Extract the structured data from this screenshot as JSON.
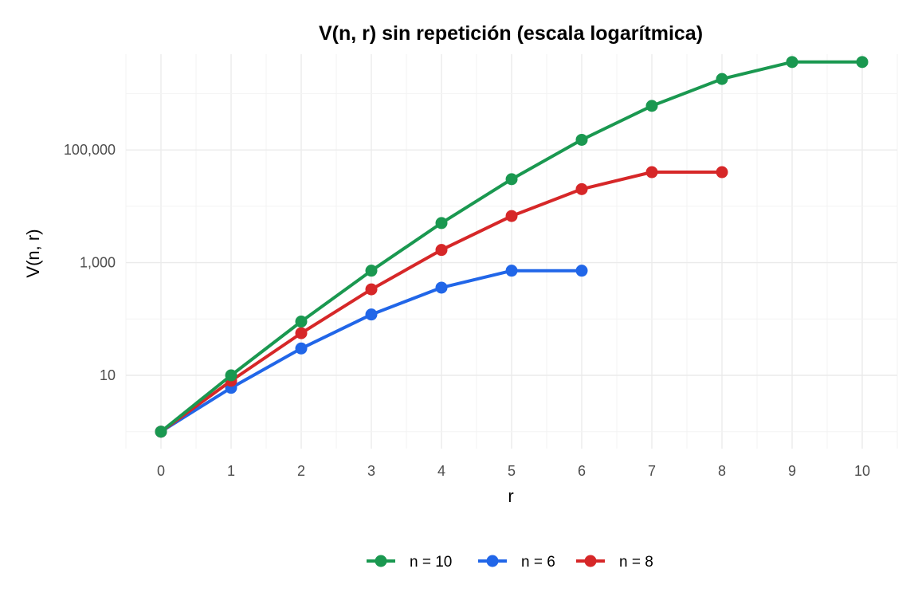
{
  "chart_data": {
    "type": "line",
    "title": "V(n, r) sin repetición (escala logarítmica)",
    "xlabel": "r",
    "ylabel": "V(n, r)",
    "x_scale": "linear",
    "y_scale": "log10",
    "xlim": [
      -0.5,
      10.5
    ],
    "ylim": [
      0.5,
      5000000
    ],
    "x_ticks": [
      0,
      1,
      2,
      3,
      4,
      5,
      6,
      7,
      8,
      9,
      10
    ],
    "x_tick_labels": [
      "0",
      "1",
      "2",
      "3",
      "4",
      "5",
      "6",
      "7",
      "8",
      "9",
      "10"
    ],
    "y_ticks": [
      10,
      1000,
      100000
    ],
    "y_tick_labels": [
      "10",
      "1,000",
      "100,000"
    ],
    "grid": true,
    "legend_position": "bottom",
    "series": [
      {
        "name": "n = 10",
        "color": "#1a9850",
        "x": [
          0,
          1,
          2,
          3,
          4,
          5,
          6,
          7,
          8,
          9,
          10
        ],
        "y": [
          1,
          10,
          90,
          720,
          5040,
          30240,
          151200,
          604800,
          1814400,
          3628800,
          3628800
        ]
      },
      {
        "name": "n = 6",
        "color": "#2166e8",
        "x": [
          0,
          1,
          2,
          3,
          4,
          5,
          6
        ],
        "y": [
          1,
          6,
          30,
          120,
          360,
          720,
          720
        ]
      },
      {
        "name": "n = 8",
        "color": "#d62728",
        "x": [
          0,
          1,
          2,
          3,
          4,
          5,
          6,
          7,
          8
        ],
        "y": [
          1,
          8,
          56,
          336,
          1680,
          6720,
          20160,
          40320,
          40320
        ]
      }
    ]
  }
}
